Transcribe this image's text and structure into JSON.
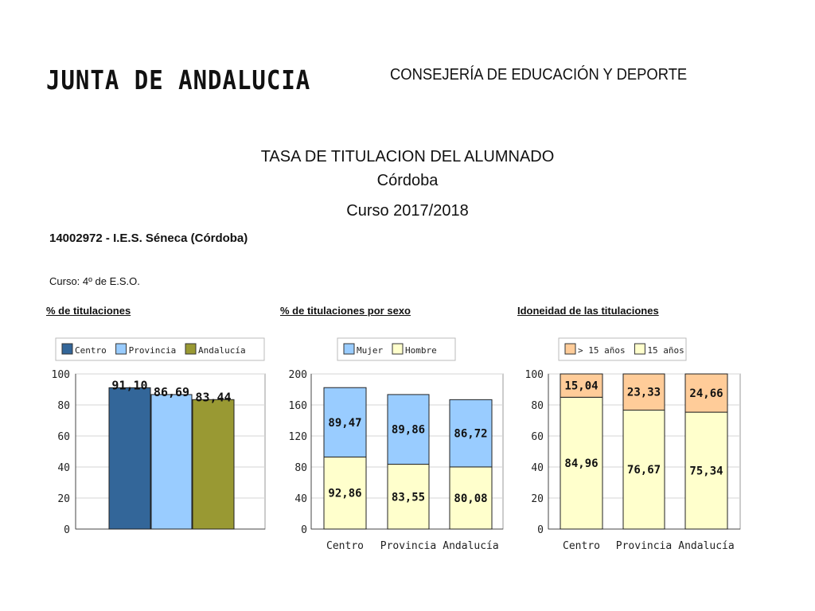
{
  "header": {
    "org": "JUNTA DE ANDALUCIA",
    "department": "CONSEJERÍA DE EDUCACIÓN Y DEPORTE"
  },
  "report": {
    "title": "TASA DE TITULACION DEL ALUMNADO",
    "province": "Córdoba",
    "year": "Curso 2017/2018",
    "center": "14002972 - I.E.S. Séneca (Córdoba)",
    "course": "Curso:  4º de E.S.O."
  },
  "chart_data": [
    {
      "type": "bar",
      "title": "% de titulaciones",
      "categories": [
        "Centro",
        "Provincia",
        "Andalucía"
      ],
      "values": [
        91.1,
        86.69,
        83.44
      ],
      "value_labels": [
        "91,10",
        "86,69",
        "83,44"
      ],
      "colors": [
        "#336699",
        "#99ccff",
        "#999933"
      ],
      "legend": [
        "Centro",
        "Provincia",
        "Andalucía"
      ],
      "legend_position": "top",
      "ylim": [
        0,
        100
      ],
      "yticks": [
        "0",
        "20",
        "40",
        "60",
        "80",
        "100"
      ],
      "show_x_tick_labels": false,
      "grid": true
    },
    {
      "type": "bar",
      "stacked": true,
      "title": "% de titulaciones por sexo",
      "categories": [
        "Centro",
        "Provincia",
        "Andalucía"
      ],
      "series": [
        {
          "name": "Hombre",
          "values": [
            92.86,
            83.55,
            80.08
          ],
          "labels": [
            "92,86",
            "83,55",
            "80,08"
          ],
          "color": "#ffffcc"
        },
        {
          "name": "Mujer",
          "values": [
            89.47,
            89.86,
            86.72
          ],
          "labels": [
            "89,47",
            "89,86",
            "86,72"
          ],
          "color": "#99ccff"
        }
      ],
      "legend": [
        "Mujer",
        "Hombre"
      ],
      "legend_position": "top",
      "ylim": [
        0,
        200
      ],
      "yticks": [
        "0",
        "40",
        "80",
        "120",
        "160",
        "200"
      ],
      "grid": true
    },
    {
      "type": "bar",
      "stacked": true,
      "title": "Idoneidad  de las titulaciones",
      "categories": [
        "Centro",
        "Provincia",
        "Andalucía"
      ],
      "series": [
        {
          "name": "15 años",
          "values": [
            84.96,
            76.67,
            75.34
          ],
          "labels": [
            "84,96",
            "76,67",
            "75,34"
          ],
          "color": "#ffffcc"
        },
        {
          "name": "> 15 años",
          "values": [
            15.04,
            23.33,
            24.66
          ],
          "labels": [
            "15,04",
            "23,33",
            "24,66"
          ],
          "color": "#ffcc99"
        }
      ],
      "legend": [
        "> 15 años",
        "15 años"
      ],
      "legend_position": "top",
      "ylim": [
        0,
        100
      ],
      "yticks": [
        "0",
        "20",
        "40",
        "60",
        "80",
        "100"
      ],
      "grid": true
    }
  ]
}
